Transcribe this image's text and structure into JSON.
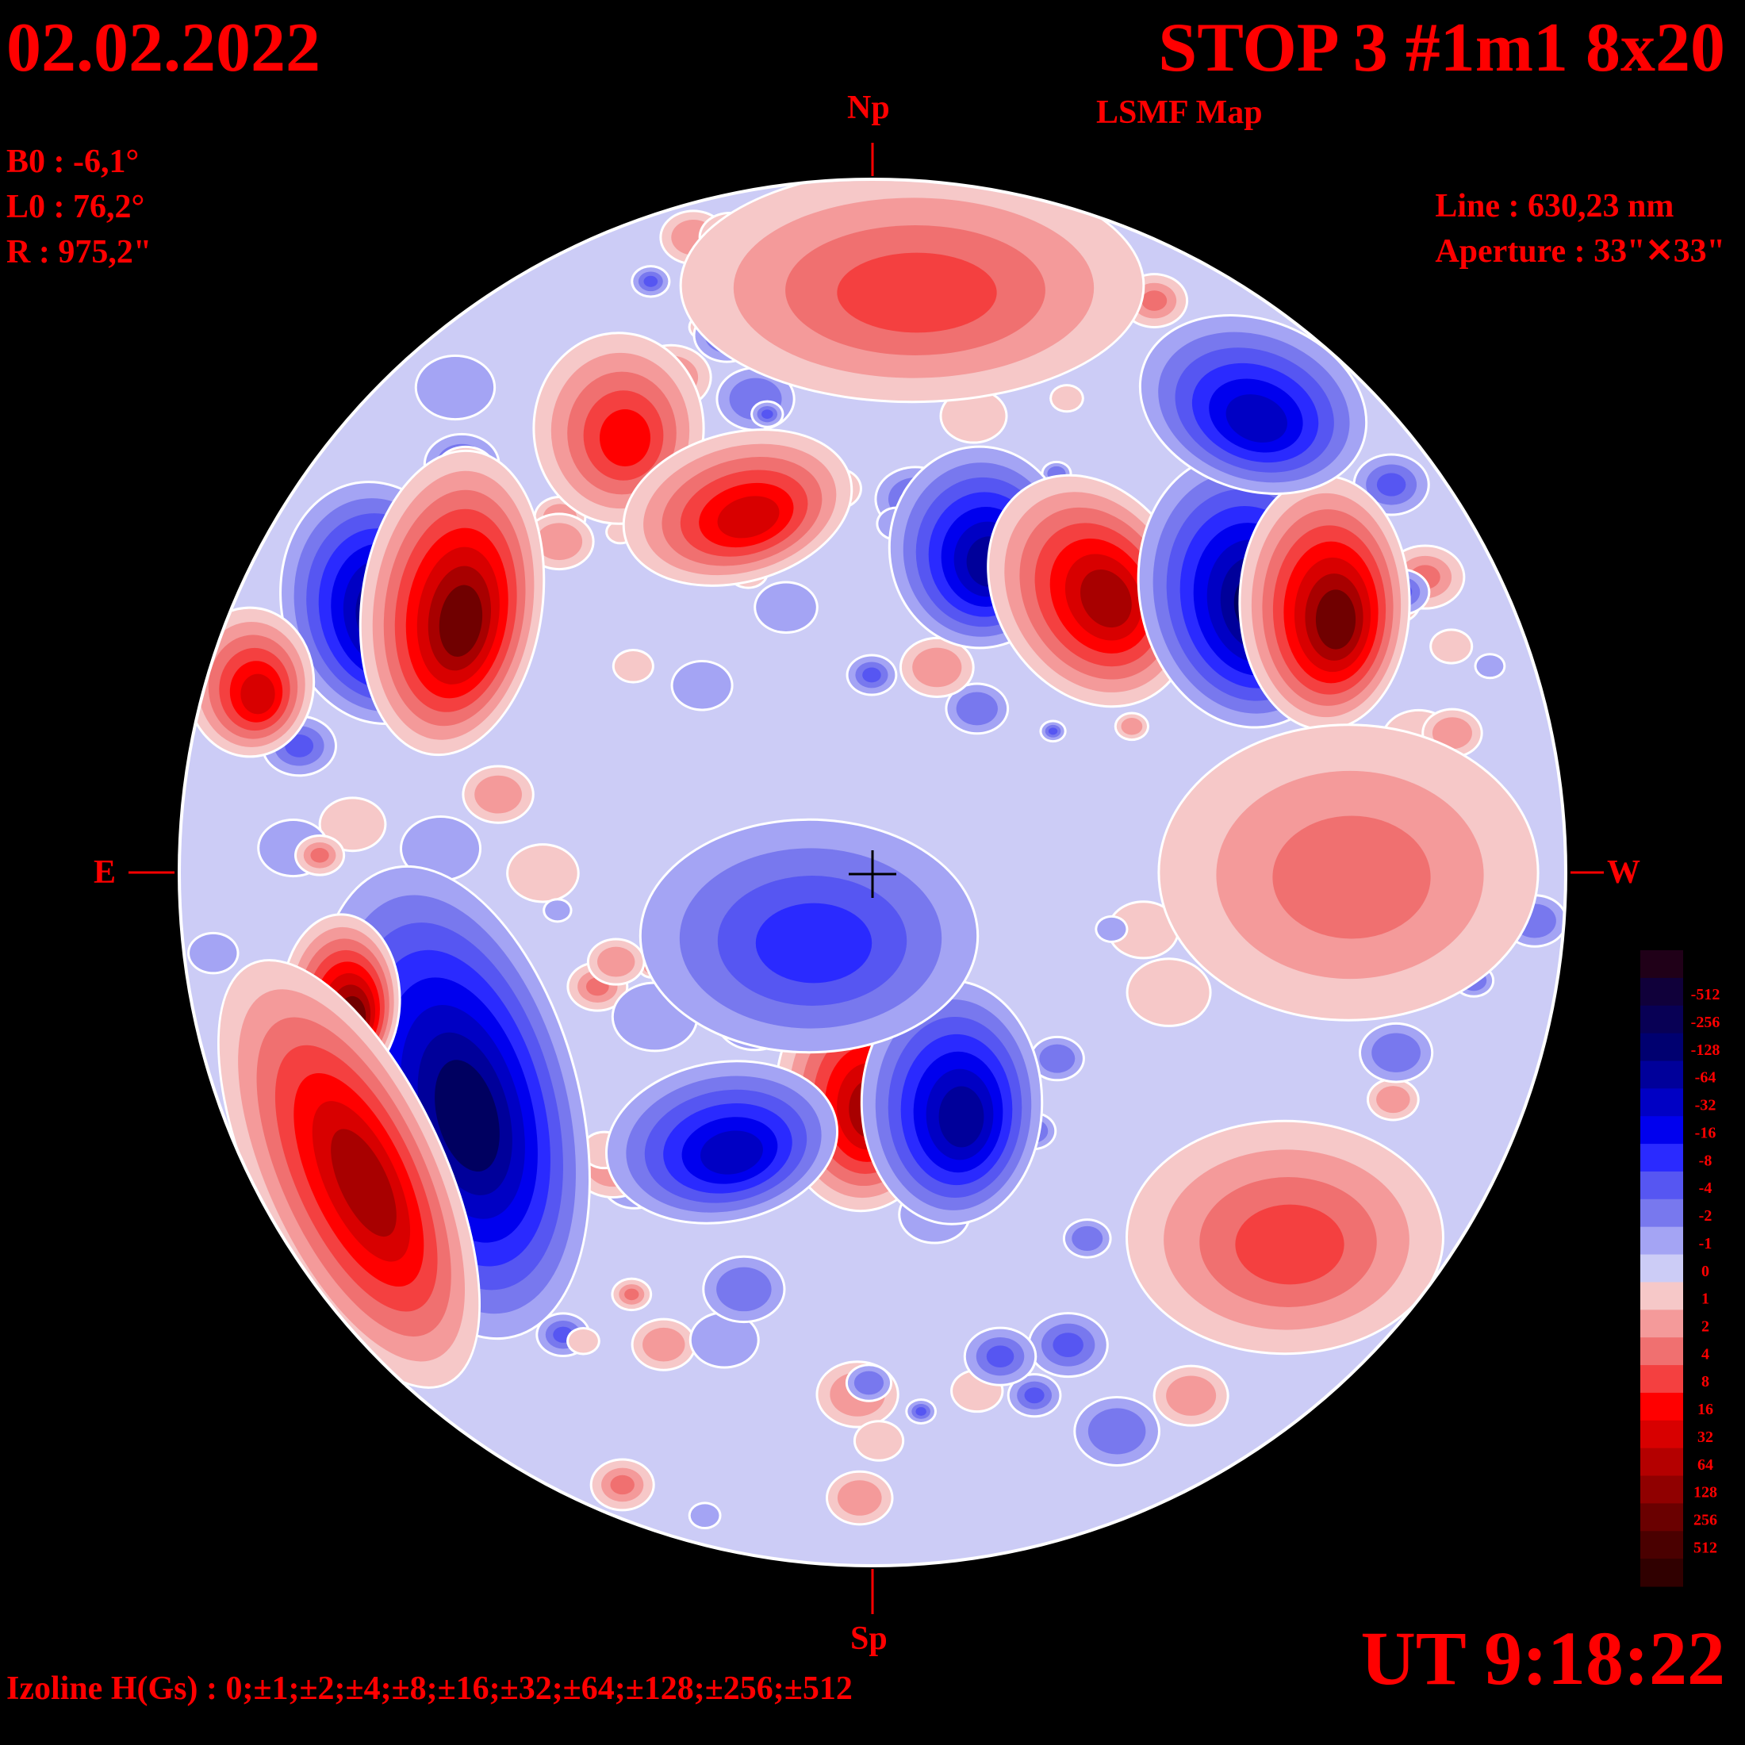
{
  "header": {
    "date": "02.02.2022",
    "title": "STOP 3 #1m1 8x20",
    "subtitle": "LSMF  Map"
  },
  "params": {
    "b0": "B0 : -6,1°",
    "l0": "L0 : 76,2°",
    "r": "R  : 975,2\""
  },
  "instrument": {
    "line": "Line :  630,23 nm",
    "aperture": "Aperture : 33\"✕33\""
  },
  "directions": {
    "north": "Np",
    "south": "Sp",
    "east": "E",
    "west": "W"
  },
  "time": "UT 9:18:22",
  "izoline": "Izoline H(Gs) : 0;±1;±2;±4;±8;±16;±32;±64;±128;±256;±512",
  "colorbar": {
    "levels": [
      {
        "label": "",
        "color": "#200018"
      },
      {
        "label": "-512",
        "color": "#10003a"
      },
      {
        "label": "-256",
        "color": "#080055"
      },
      {
        "label": "-128",
        "color": "#000070"
      },
      {
        "label": "-64",
        "color": "#00009a"
      },
      {
        "label": "-32",
        "color": "#0000c4"
      },
      {
        "label": "-16",
        "color": "#0000ee"
      },
      {
        "label": "-8",
        "color": "#2a2aff"
      },
      {
        "label": "-4",
        "color": "#5656f2"
      },
      {
        "label": "-2",
        "color": "#7878ee"
      },
      {
        "label": "-1",
        "color": "#a4a4f4"
      },
      {
        "label": "0",
        "color": "#ccccf6"
      },
      {
        "label": "1",
        "color": "#f6c8c8"
      },
      {
        "label": "2",
        "color": "#f49a9a"
      },
      {
        "label": "4",
        "color": "#f07070"
      },
      {
        "label": "8",
        "color": "#f44040"
      },
      {
        "label": "16",
        "color": "#ff0000"
      },
      {
        "label": "32",
        "color": "#d80000"
      },
      {
        "label": "64",
        "color": "#b40000"
      },
      {
        "label": "128",
        "color": "#900000"
      },
      {
        "label": "256",
        "color": "#6a0000"
      },
      {
        "label": "512",
        "color": "#4a0000"
      },
      {
        "label": "",
        "color": "#300000"
      }
    ]
  },
  "map": {
    "background": "#ccccf6",
    "colors": {
      "pos": [
        "#f6c8c8",
        "#f49a9a",
        "#f07070",
        "#f44040",
        "#ff0000",
        "#d80000",
        "#a80000",
        "#700000"
      ],
      "neg": [
        "#a4a4f4",
        "#7878ee",
        "#5656f2",
        "#2a2aff",
        "#0000ee",
        "#0000c4",
        "#00009a",
        "#000060"
      ]
    },
    "regions": [
      {
        "name": "region-east-active-neg",
        "sign": "neg",
        "strength": 7
      },
      {
        "name": "region-east-active-pos",
        "sign": "pos",
        "strength": 7
      },
      {
        "name": "region-ne-pos",
        "sign": "pos",
        "strength": 4
      },
      {
        "name": "region-north-central-pos",
        "sign": "pos",
        "strength": 5
      },
      {
        "name": "region-north-central-neg",
        "sign": "neg",
        "strength": 6
      },
      {
        "name": "region-nw-pos",
        "sign": "pos",
        "strength": 6
      },
      {
        "name": "region-nw-neg",
        "sign": "neg",
        "strength": 7
      },
      {
        "name": "region-far-west-pos",
        "sign": "pos",
        "strength": 7
      },
      {
        "name": "region-sw-neg",
        "sign": "neg",
        "strength": 7
      },
      {
        "name": "region-sw-pos-upper",
        "sign": "pos",
        "strength": 7
      },
      {
        "name": "region-sw-pos-lower",
        "sign": "pos",
        "strength": 6
      },
      {
        "name": "region-south-pos",
        "sign": "pos",
        "strength": 6
      },
      {
        "name": "region-south-neg",
        "sign": "neg",
        "strength": 6
      },
      {
        "name": "region-south-west-neg",
        "sign": "neg",
        "strength": 5
      },
      {
        "name": "region-limb-east-pos",
        "sign": "pos",
        "strength": 5
      },
      {
        "name": "region-center-neg",
        "sign": "neg",
        "strength": 3
      },
      {
        "name": "region-ne-upper-neg",
        "sign": "neg",
        "strength": 5
      },
      {
        "name": "region-east-right-pos",
        "sign": "pos",
        "strength": 2
      },
      {
        "name": "region-se-pos",
        "sign": "pos",
        "strength": 3
      },
      {
        "name": "region-north-pos",
        "sign": "pos",
        "strength": 3
      }
    ]
  }
}
